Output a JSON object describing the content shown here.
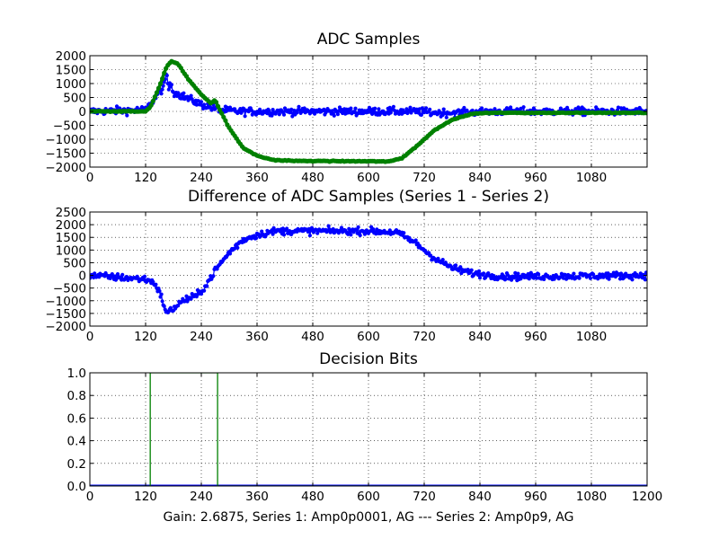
{
  "figure_xlabel": "Gain: 2.6875, Series 1: Amp0p0001, AG --- Series 2: Amp0p9, AG",
  "colors": {
    "series1": "#0000ff",
    "series2": "#008000",
    "grid": "#000000"
  },
  "chart_data": [
    {
      "type": "scatter",
      "title": "ADC Samples",
      "xlim": [
        0,
        1200
      ],
      "ylim": [
        -2000,
        2000
      ],
      "grid": true,
      "legend": "none",
      "xticks": [
        "0",
        "120",
        "240",
        "360",
        "480",
        "600",
        "720",
        "840",
        "960",
        "1080"
      ],
      "yticks": [
        "2000",
        "1500",
        "1000",
        "500",
        "0",
        "−500",
        "−1000",
        "−1500",
        "−2000"
      ],
      "series": [
        {
          "color": "#0000ff",
          "style": "line-markers",
          "noise": 130,
          "x": [
            0,
            120,
            130,
            145,
            160,
            165,
            170,
            175,
            180,
            200,
            240,
            280,
            320,
            400,
            600,
            700,
            750,
            800,
            850,
            1200
          ],
          "y": [
            0,
            50,
            250,
            600,
            900,
            1400,
            800,
            1000,
            700,
            550,
            250,
            50,
            0,
            0,
            0,
            0,
            -50,
            -50,
            0,
            0
          ]
        },
        {
          "color": "#008000",
          "style": "thick-markers",
          "noise": 15,
          "x": [
            0,
            120,
            130,
            150,
            165,
            175,
            190,
            210,
            240,
            260,
            270,
            280,
            300,
            330,
            360,
            400,
            450,
            600,
            640,
            670,
            700,
            740,
            780,
            820,
            850,
            900,
            1200
          ],
          "y": [
            0,
            0,
            150,
            900,
            1600,
            1800,
            1700,
            1200,
            600,
            300,
            400,
            50,
            -600,
            -1300,
            -1600,
            -1750,
            -1780,
            -1790,
            -1800,
            -1700,
            -1300,
            -700,
            -300,
            -100,
            -50,
            -50,
            -50
          ]
        }
      ]
    },
    {
      "type": "scatter",
      "title": "Difference of ADC Samples (Series 1 - Series 2)",
      "xlim": [
        0,
        1200
      ],
      "ylim": [
        -2000,
        2500
      ],
      "grid": true,
      "legend": "none",
      "xticks": [
        "0",
        "120",
        "240",
        "360",
        "480",
        "600",
        "720",
        "840",
        "960",
        "1080"
      ],
      "yticks": [
        "2500",
        "2000",
        "1500",
        "1000",
        "500",
        "0",
        "−500",
        "−1000",
        "−1500",
        "−2000"
      ],
      "series": [
        {
          "color": "#0000ff",
          "style": "line-markers",
          "noise": 130,
          "x": [
            0,
            120,
            140,
            155,
            165,
            180,
            200,
            230,
            250,
            270,
            300,
            330,
            360,
            400,
            600,
            660,
            700,
            740,
            780,
            820,
            860,
            900,
            1200
          ],
          "y": [
            0,
            -150,
            -300,
            -900,
            -1500,
            -1300,
            -1000,
            -800,
            -400,
            200,
            900,
            1400,
            1600,
            1750,
            1750,
            1700,
            1300,
            700,
            300,
            100,
            0,
            -50,
            0
          ]
        }
      ]
    },
    {
      "type": "line",
      "title": "Decision Bits",
      "xlim": [
        0,
        1200
      ],
      "ylim": [
        0,
        1
      ],
      "grid": true,
      "legend": "none",
      "xticks": [
        "0",
        "120",
        "240",
        "360",
        "480",
        "600",
        "720",
        "840",
        "960",
        "1080",
        "1200"
      ],
      "yticks": [
        "1.0",
        "0.8",
        "0.6",
        "0.4",
        "0.2",
        "0.0"
      ],
      "series": [
        {
          "color": "#0000ff",
          "style": "line",
          "noise": 0,
          "x": [
            0,
            1200
          ],
          "y": [
            0,
            0
          ]
        },
        {
          "color": "#008000",
          "style": "step",
          "noise": 0,
          "x": [
            0,
            130,
            130,
            275,
            275,
            1200
          ],
          "y": [
            0,
            0,
            1,
            1,
            0,
            0
          ]
        }
      ]
    }
  ]
}
